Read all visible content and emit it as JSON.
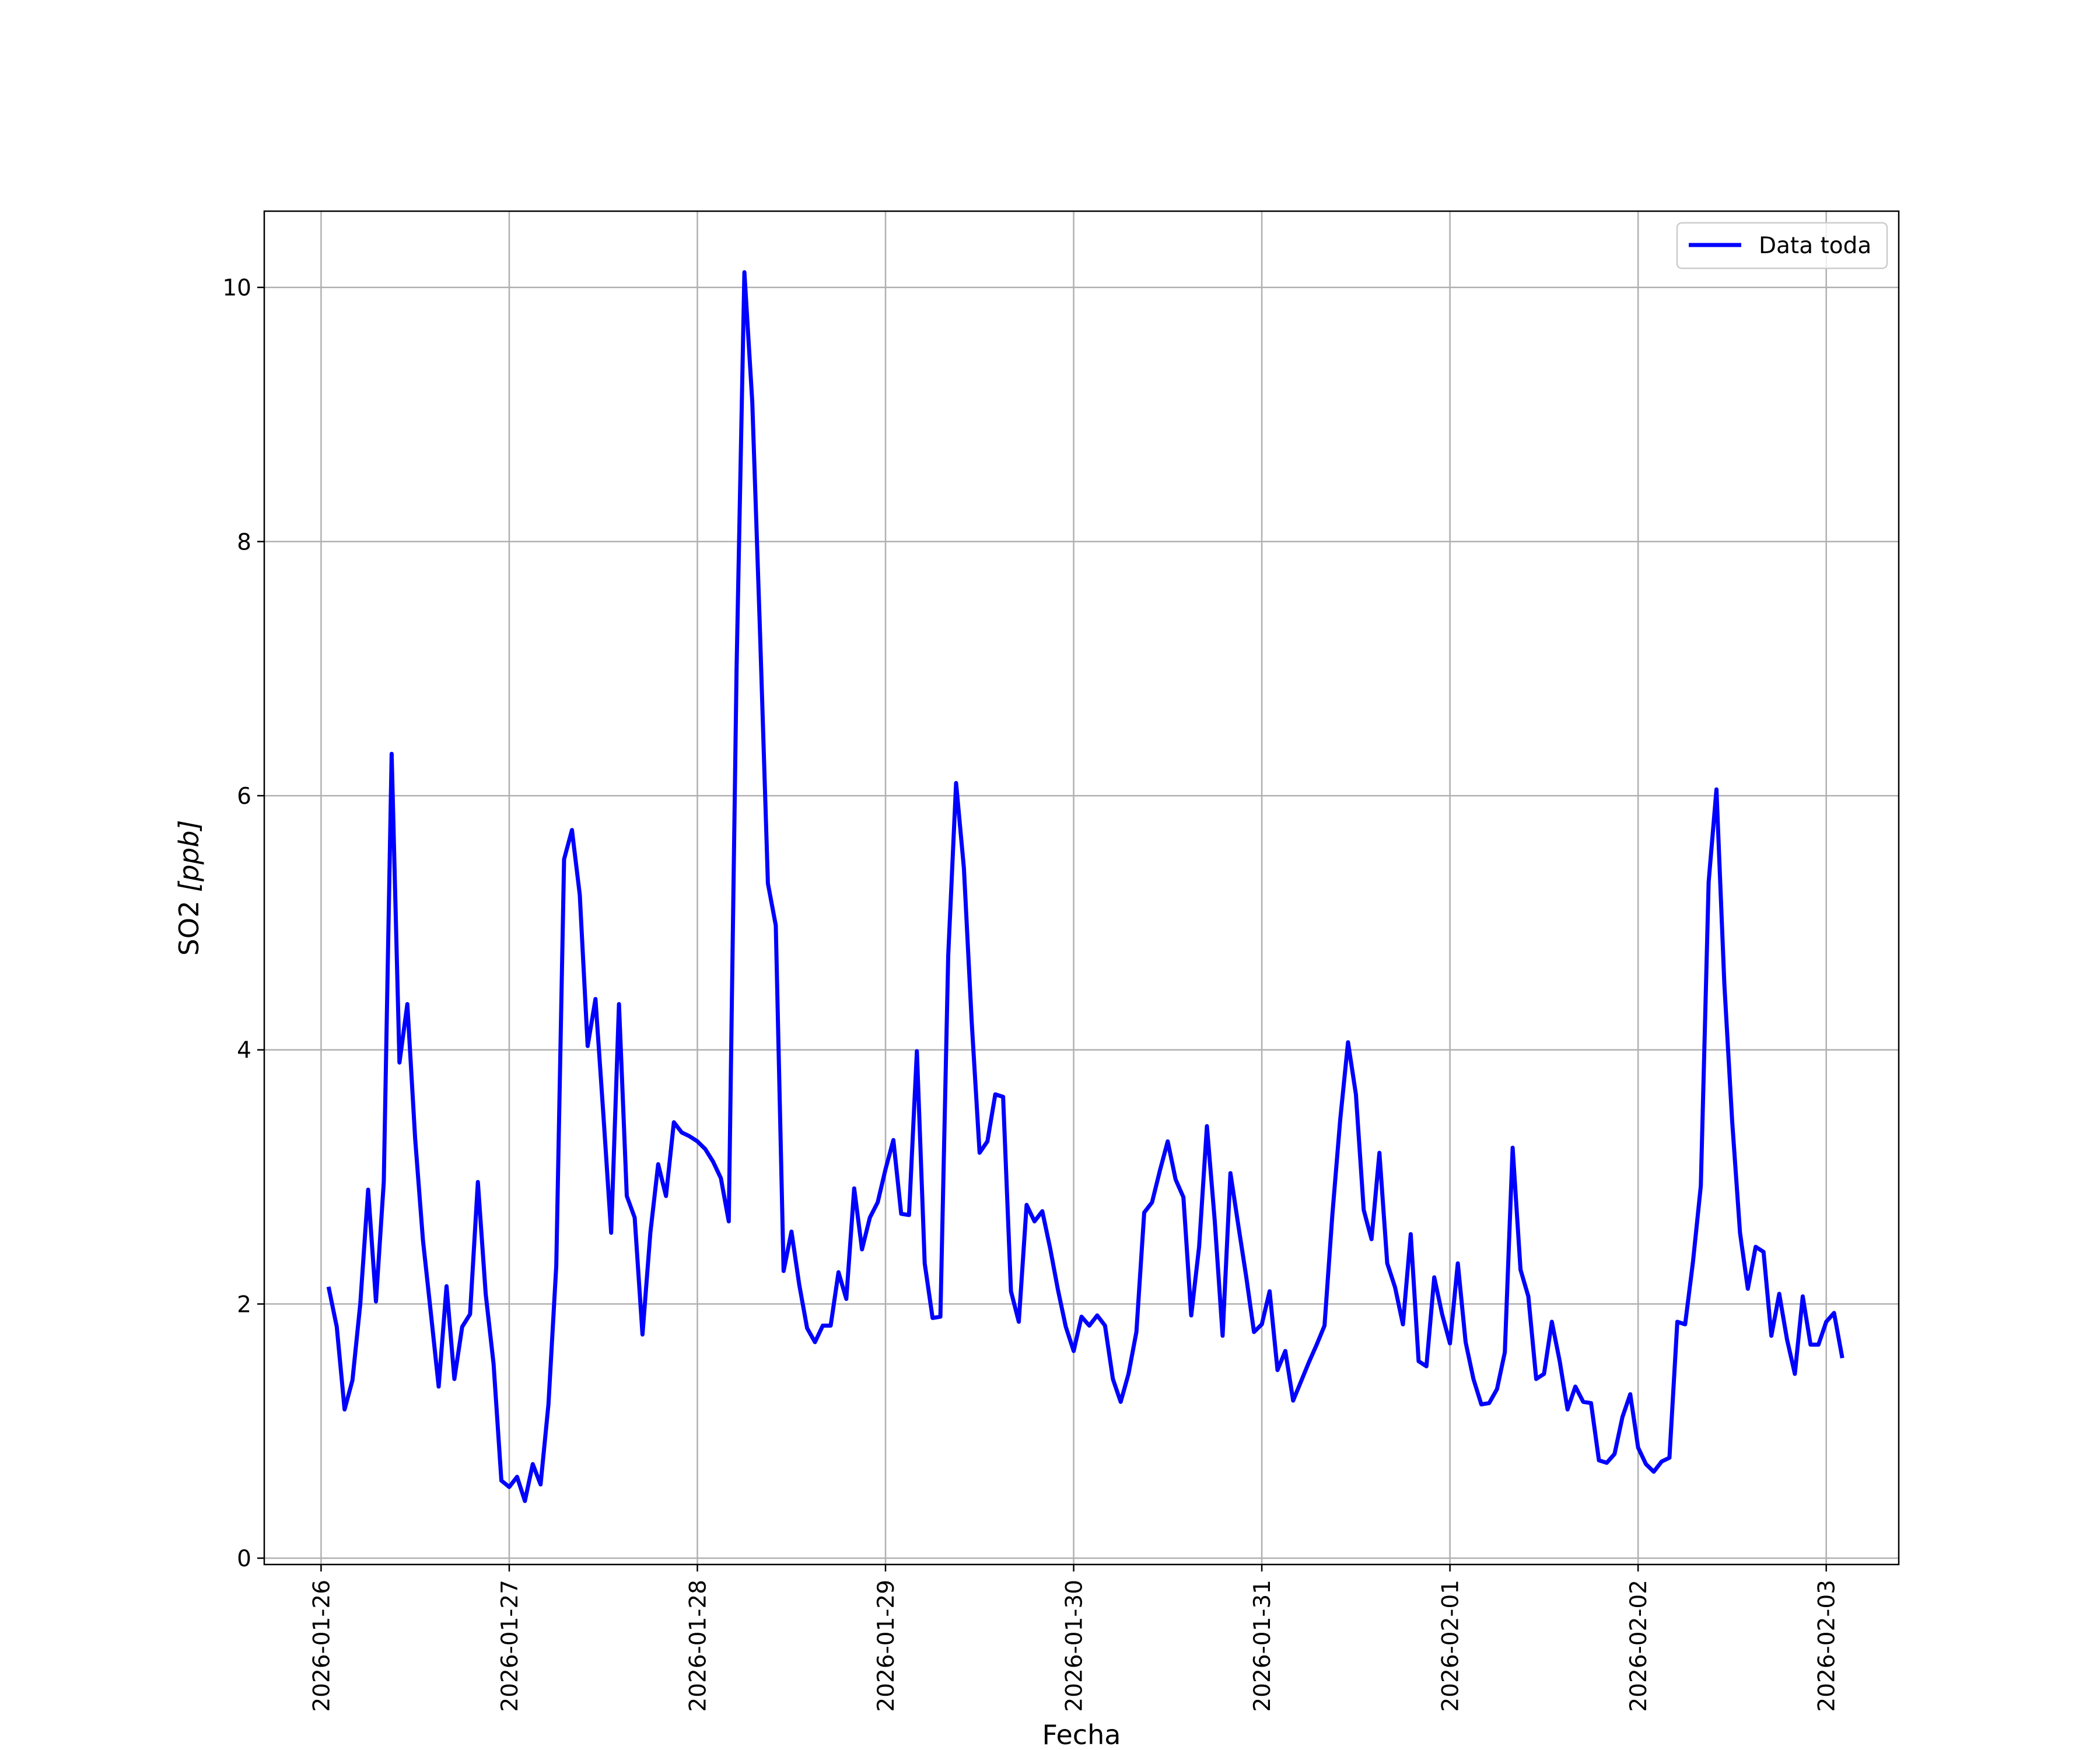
{
  "chart_data": {
    "type": "line",
    "xlabel": "Fecha",
    "ylabel_main": "SO2 ",
    "ylabel_unit": "[ppb]",
    "x_ticks": [
      "2026-01-26",
      "2026-01-27",
      "2026-01-28",
      "2026-01-29",
      "2026-01-30",
      "2026-01-31",
      "2026-02-01",
      "2026-02-02",
      "2026-02-03"
    ],
    "y_ticks": [
      0,
      2,
      4,
      6,
      8,
      10
    ],
    "y_tick_labels": [
      "0",
      "2",
      "4",
      "6",
      "8",
      "10"
    ],
    "xlim": [
      "2026-01-25T16:45",
      "2026-02-03T09:15"
    ],
    "ylim": [
      -0.05,
      10.6
    ],
    "grid": true,
    "legend_position": "top-right",
    "series": [
      {
        "name": "Data toda",
        "color": "#0000ff",
        "start": "2026-01-26T01:00",
        "step_hours": 1,
        "values": [
          2.12,
          1.82,
          1.17,
          1.4,
          2.0,
          2.9,
          2.02,
          2.96,
          6.33,
          3.9,
          4.36,
          3.3,
          2.5,
          1.93,
          1.35,
          2.14,
          1.41,
          1.82,
          1.92,
          2.96,
          2.08,
          1.53,
          0.61,
          0.56,
          0.64,
          0.45,
          0.74,
          0.58,
          1.21,
          2.3,
          5.5,
          5.73,
          5.22,
          4.03,
          4.4,
          3.5,
          2.56,
          4.36,
          2.85,
          2.68,
          1.76,
          2.56,
          3.1,
          2.85,
          3.43,
          3.35,
          3.32,
          3.28,
          3.22,
          3.12,
          2.99,
          2.65,
          7.0,
          10.12,
          9.1,
          7.27,
          5.31,
          4.98,
          2.26,
          2.57,
          2.15,
          1.81,
          1.7,
          1.83,
          1.83,
          2.25,
          2.04,
          2.91,
          2.43,
          2.68,
          2.8,
          3.06,
          3.29,
          2.71,
          2.7,
          3.99,
          2.32,
          1.89,
          1.9,
          4.74,
          6.1,
          5.43,
          4.21,
          3.19,
          3.28,
          3.65,
          3.63,
          2.1,
          1.86,
          2.78,
          2.65,
          2.73,
          2.44,
          2.11,
          1.82,
          1.63,
          1.9,
          1.83,
          1.91,
          1.83,
          1.41,
          1.23,
          1.45,
          1.78,
          2.72,
          2.8,
          3.05,
          3.28,
          2.98,
          2.84,
          1.91,
          2.45,
          3.4,
          2.65,
          1.75,
          3.03,
          2.62,
          2.22,
          1.78,
          1.84,
          2.1,
          1.48,
          1.63,
          1.24,
          1.39,
          1.54,
          1.68,
          1.83,
          2.7,
          3.45,
          4.06,
          3.65,
          2.74,
          2.51,
          3.19,
          2.32,
          2.13,
          1.84,
          2.55,
          1.55,
          1.51,
          2.21,
          1.92,
          1.69,
          2.32,
          1.7,
          1.41,
          1.21,
          1.22,
          1.33,
          1.62,
          3.23,
          2.27,
          2.06,
          1.41,
          1.45,
          1.86,
          1.55,
          1.17,
          1.35,
          1.23,
          1.22,
          0.77,
          0.75,
          0.82,
          1.11,
          1.29,
          0.87,
          0.74,
          0.68,
          0.76,
          0.79,
          1.86,
          1.84,
          2.33,
          2.93,
          5.32,
          6.05,
          4.52,
          3.44,
          2.56,
          2.12,
          2.45,
          2.41,
          1.75,
          2.08,
          1.72,
          1.45,
          2.06,
          1.68,
          1.68,
          1.86,
          1.93,
          1.59
        ]
      }
    ]
  }
}
